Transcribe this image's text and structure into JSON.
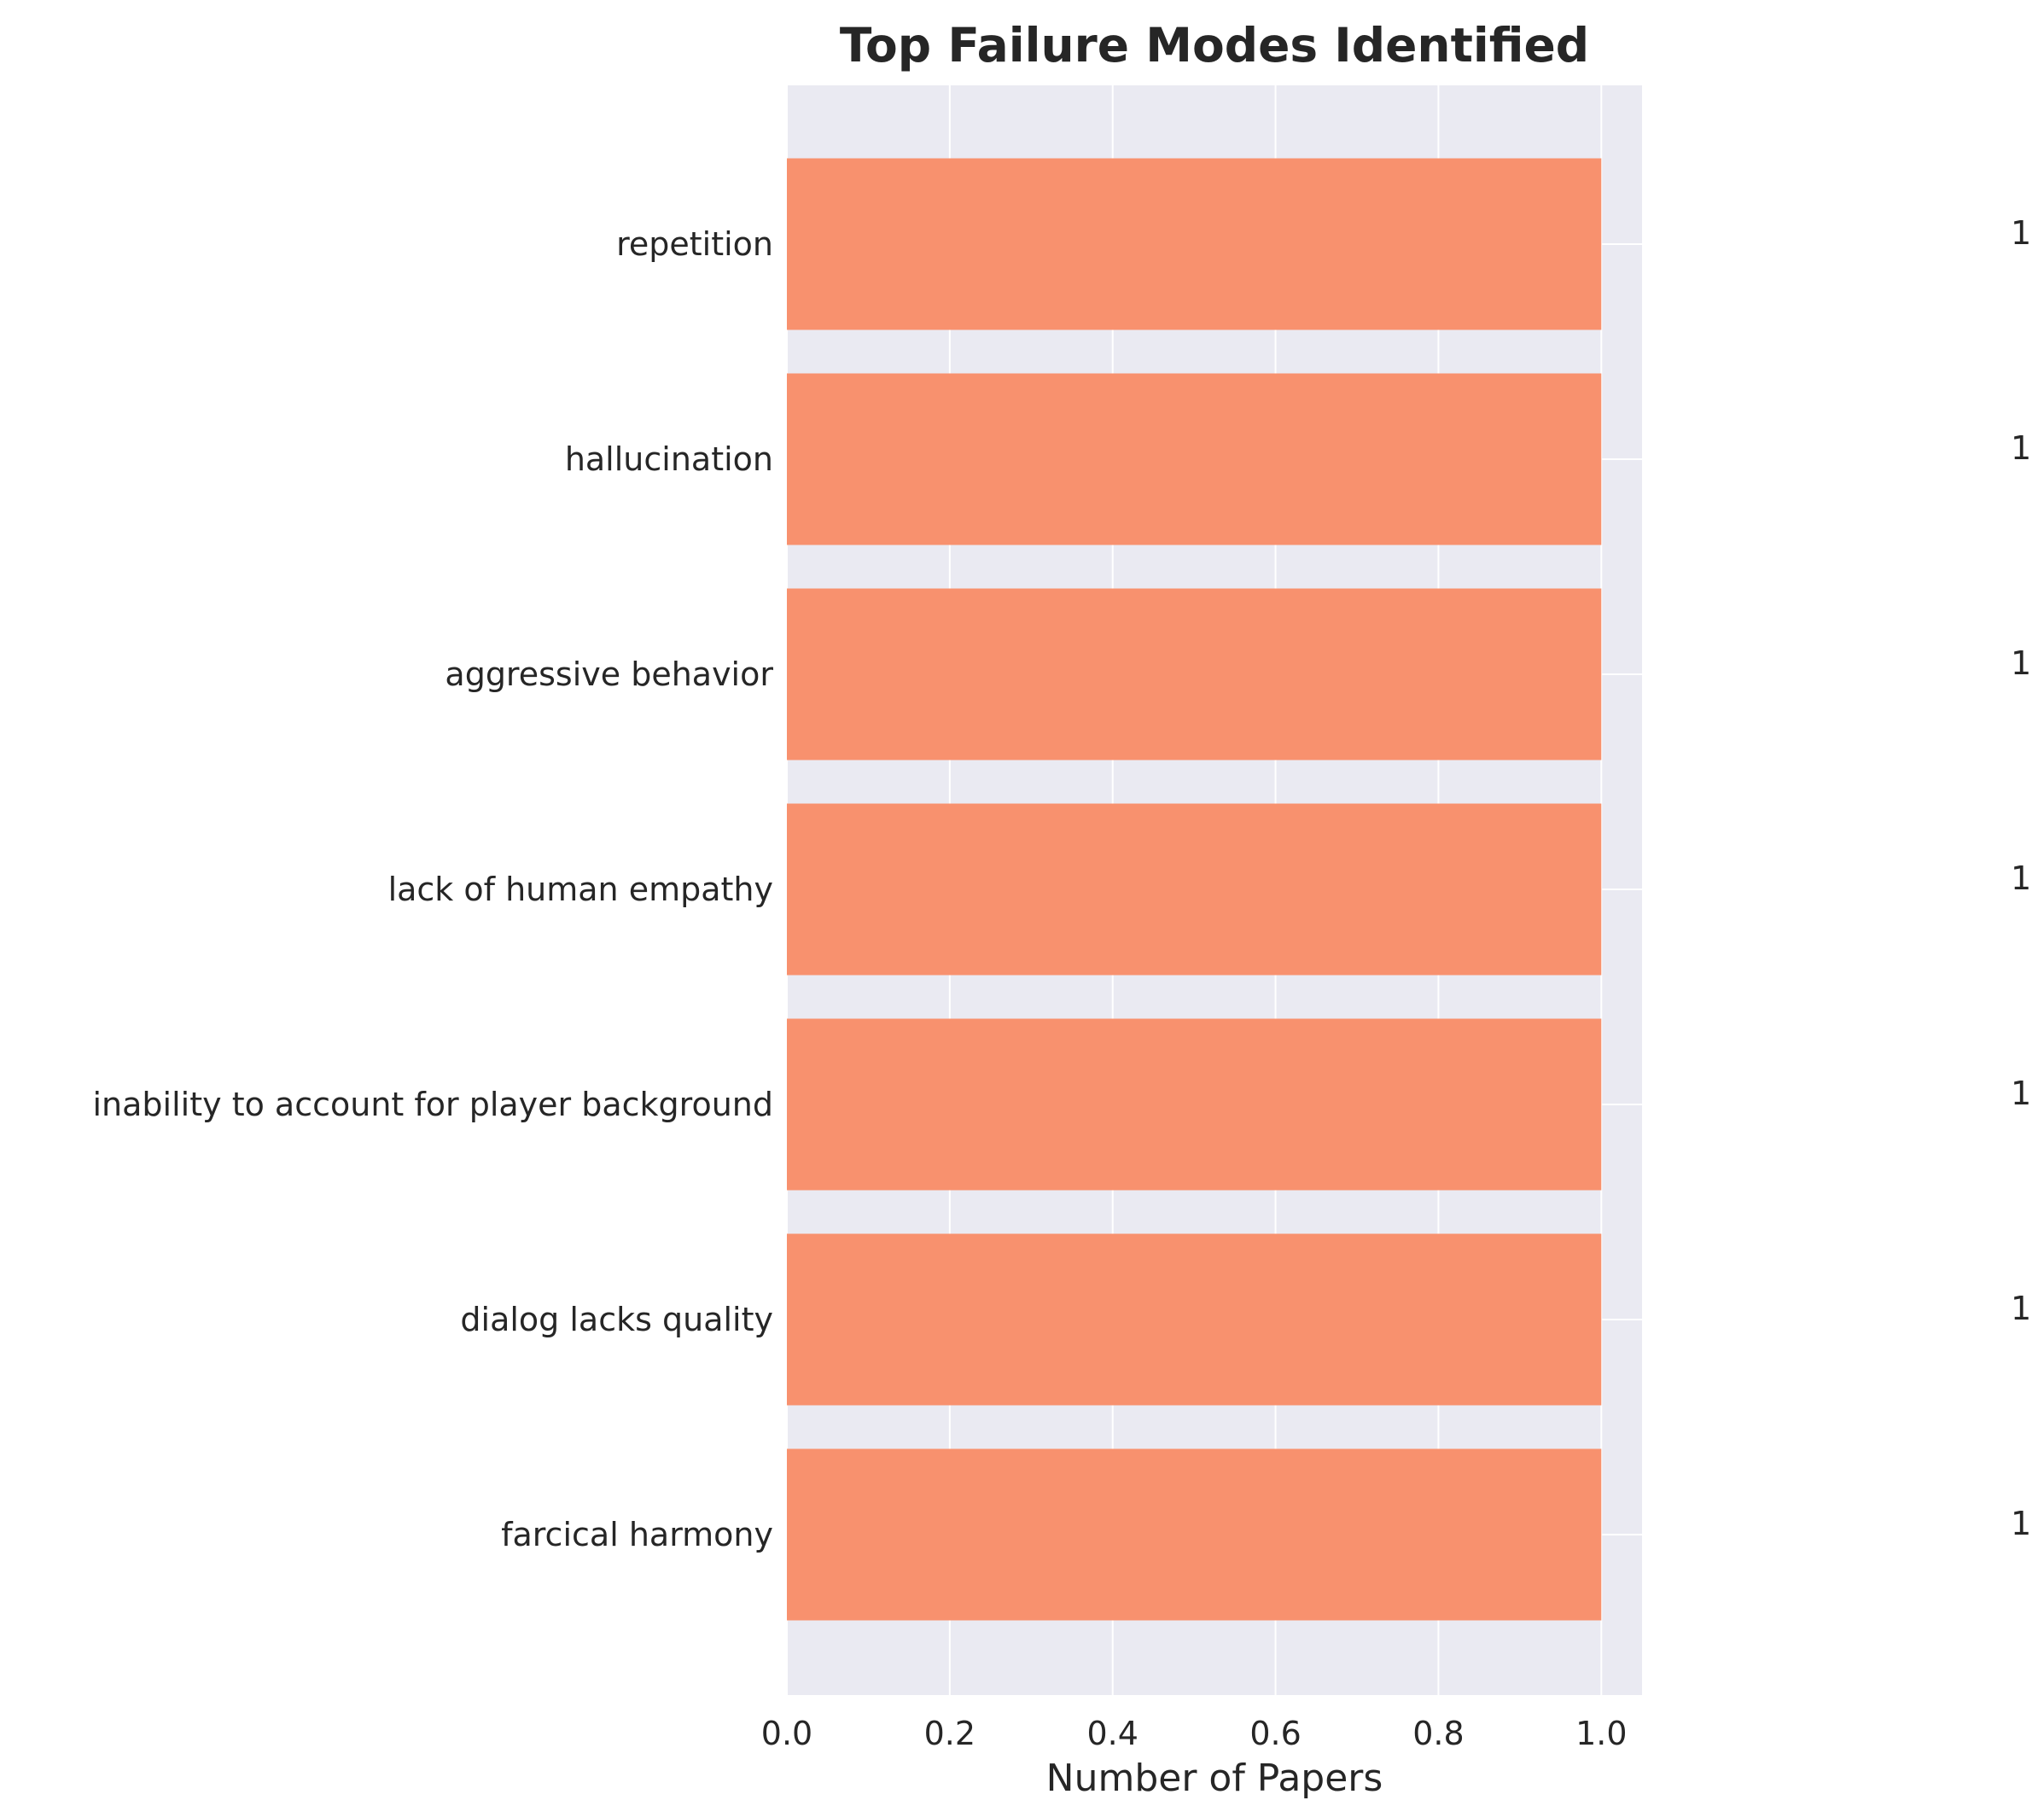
{
  "chart_data": {
    "type": "bar",
    "orientation": "horizontal",
    "title": "Top Failure Modes Identified",
    "xlabel": "Number of Papers",
    "ylabel": "",
    "xlim": [
      0,
      1.05
    ],
    "x_ticks": [
      "0.0",
      "0.2",
      "0.4",
      "0.6",
      "0.8",
      "1.0"
    ],
    "categories": [
      "repetition",
      "hallucination",
      "aggressive behavior",
      "lack of human empathy",
      "inability to account for player background",
      "dialog lacks quality",
      "farcical harmony"
    ],
    "values": [
      1,
      1,
      1,
      1,
      1,
      1,
      1
    ],
    "data_labels": [
      "1",
      "1",
      "1",
      "1",
      "1",
      "1",
      "1"
    ],
    "grid": true,
    "bar_color": "#f8916e",
    "background_color": "#eaeaf2",
    "grid_color": "#ffffff"
  }
}
